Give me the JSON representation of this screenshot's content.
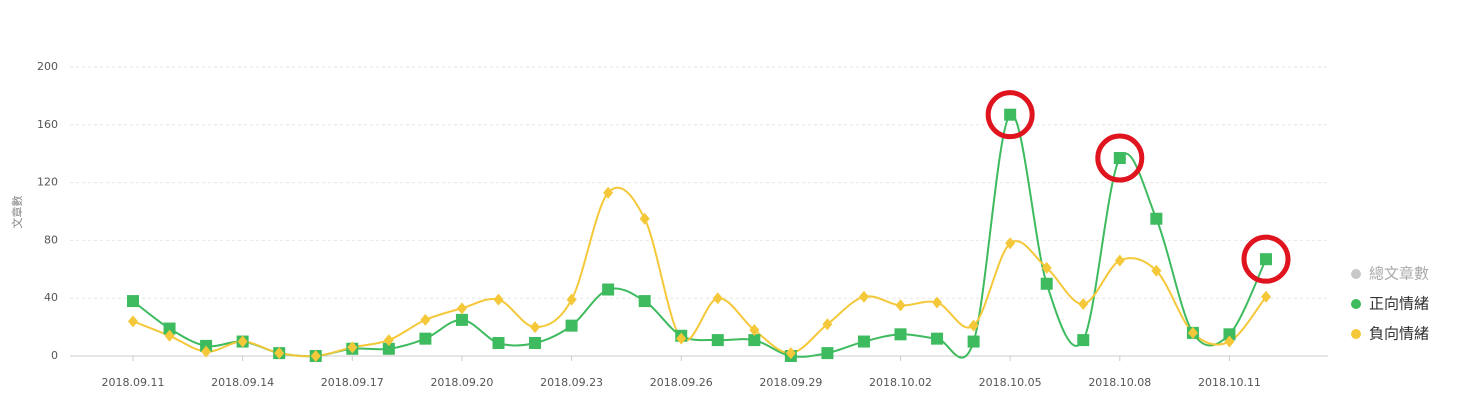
{
  "chart_data": {
    "type": "line",
    "y_label": "文章數",
    "categories": [
      "2018.09.11",
      null,
      null,
      "2018.09.14",
      null,
      null,
      "2018.09.17",
      null,
      null,
      "2018.09.20",
      null,
      null,
      "2018.09.23",
      null,
      null,
      "2018.09.26",
      null,
      null,
      "2018.09.29",
      null,
      null,
      "2018.10.02",
      null,
      null,
      "2018.10.05",
      null,
      null,
      "2018.10.08",
      null,
      null,
      "2018.10.11",
      null
    ],
    "series": [
      {
        "name": "正向情緒",
        "color": "#3dbb5e",
        "marker": "square",
        "values": [
          38,
          19,
          7,
          10,
          2,
          0,
          5,
          5,
          12,
          25,
          9,
          9,
          21,
          46,
          38,
          14,
          11,
          11,
          0,
          2,
          10,
          15,
          12,
          10,
          167,
          50,
          11,
          137,
          95,
          16,
          15,
          67
        ]
      },
      {
        "name": "負向情緒",
        "color": "#f5c83a",
        "marker": "diamond",
        "values": [
          24,
          14,
          3,
          10,
          2,
          0,
          6,
          11,
          25,
          33,
          39,
          20,
          39,
          113,
          95,
          12,
          40,
          18,
          2,
          22,
          41,
          35,
          37,
          21,
          78,
          61,
          36,
          66,
          59,
          16,
          10,
          41
        ]
      }
    ],
    "inactive_series": [
      {
        "name": "總文章數",
        "color": "#c8c8c8"
      }
    ],
    "highlights": [
      24,
      27,
      31
    ],
    "highlight_color": "#e0141e",
    "ylim": [
      0,
      200
    ],
    "yticks": [
      0,
      40,
      80,
      120,
      160,
      200
    ],
    "grid": true,
    "legend": "right",
    "smooth": true
  }
}
